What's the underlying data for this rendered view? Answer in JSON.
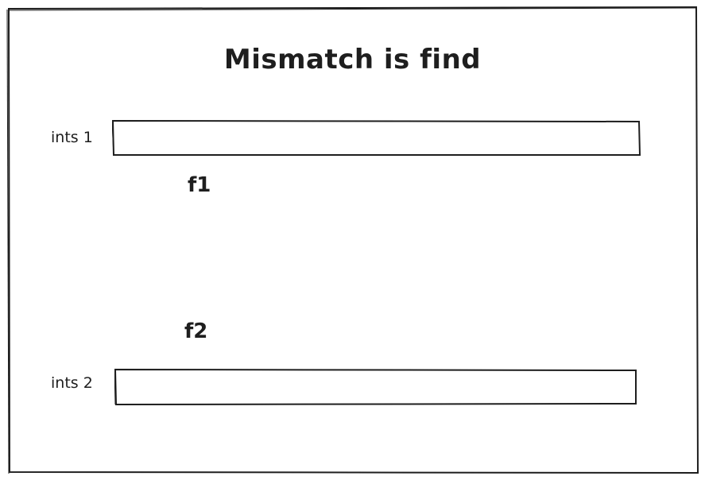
{
  "title": "Mismatch is find",
  "field1": {
    "label": "ints 1",
    "name": "f1",
    "value": ""
  },
  "field2": {
    "label": "ints 2",
    "name": "f2",
    "value": ""
  },
  "colors": {
    "stroke": "#1e1e1e",
    "background": "#ffffff"
  }
}
